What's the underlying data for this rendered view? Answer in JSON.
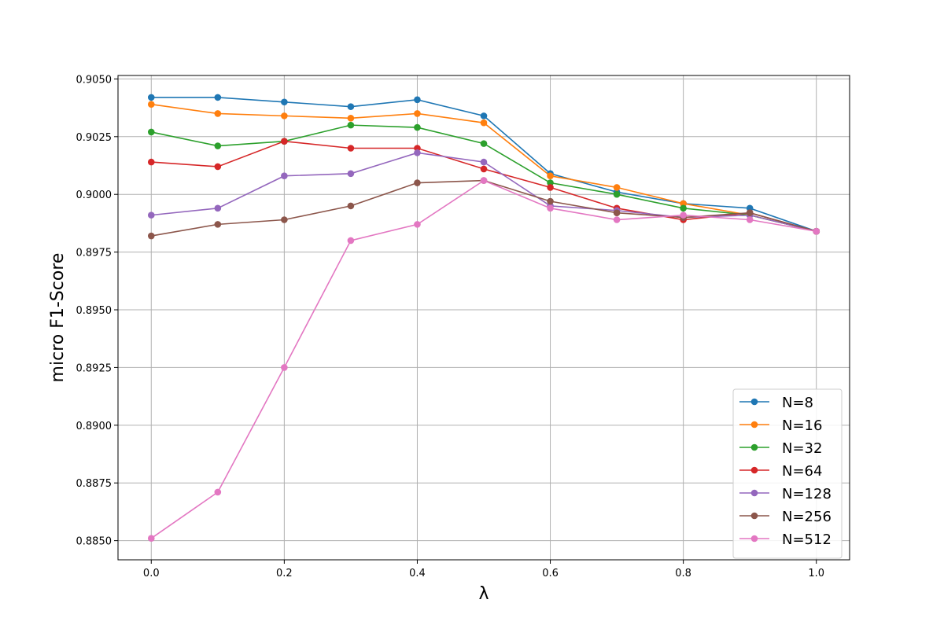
{
  "chart_data": {
    "type": "line",
    "title": "",
    "xlabel": "λ",
    "ylabel": "micro F1-Score",
    "xlim": [
      -0.05,
      1.05
    ],
    "ylim": [
      0.88417,
      0.90515
    ],
    "xticks": [
      0.0,
      0.2,
      0.4,
      0.6,
      0.8,
      1.0
    ],
    "xtick_labels": [
      "0.0",
      "0.2",
      "0.4",
      "0.6",
      "0.8",
      "1.0"
    ],
    "yticks": [
      0.885,
      0.8875,
      0.89,
      0.8925,
      0.895,
      0.8975,
      0.9,
      0.9025,
      0.905
    ],
    "ytick_labels": [
      "0.8850",
      "0.8875",
      "0.8900",
      "0.8925",
      "0.8950",
      "0.8975",
      "0.9000",
      "0.9025",
      "0.9050"
    ],
    "grid": true,
    "legend_position": "bottom-right",
    "x": [
      0.0,
      0.1,
      0.2,
      0.3,
      0.4,
      0.5,
      0.6,
      0.7,
      0.8,
      0.9,
      1.0
    ],
    "series": [
      {
        "name": "N=8",
        "color": "#1f77b4",
        "values": [
          0.9042,
          0.9042,
          0.904,
          0.9038,
          0.9041,
          0.9034,
          0.9009,
          0.9001,
          0.8996,
          0.8994,
          0.8984
        ]
      },
      {
        "name": "N=16",
        "color": "#ff7f0e",
        "values": [
          0.9039,
          0.9035,
          0.9034,
          0.9033,
          0.9035,
          0.9031,
          0.9008,
          0.9003,
          0.8996,
          0.8991,
          0.8984
        ]
      },
      {
        "name": "N=32",
        "color": "#2ca02c",
        "values": [
          0.9027,
          0.9021,
          0.9023,
          0.903,
          0.9029,
          0.9022,
          0.9005,
          0.9,
          0.8994,
          0.8991,
          0.8984
        ]
      },
      {
        "name": "N=64",
        "color": "#d62728",
        "values": [
          0.9014,
          0.9012,
          0.9023,
          0.902,
          0.902,
          0.9011,
          0.9003,
          0.8994,
          0.8989,
          0.8992,
          0.8984
        ]
      },
      {
        "name": "N=128",
        "color": "#9467bd",
        "values": [
          0.8991,
          0.8994,
          0.9008,
          0.9009,
          0.9018,
          0.9014,
          0.8995,
          0.8993,
          0.899,
          0.8991,
          0.8984
        ]
      },
      {
        "name": "N=256",
        "color": "#8c564b",
        "values": [
          0.8982,
          0.8987,
          0.8989,
          0.8995,
          0.9005,
          0.9006,
          0.8997,
          0.8992,
          0.899,
          0.8992,
          0.8984
        ]
      },
      {
        "name": "N=512",
        "color": "#e377c2",
        "values": [
          0.8851,
          0.8871,
          0.8925,
          0.898,
          0.8987,
          0.9006,
          0.8994,
          0.8989,
          0.8991,
          0.8989,
          0.8984
        ]
      }
    ]
  }
}
